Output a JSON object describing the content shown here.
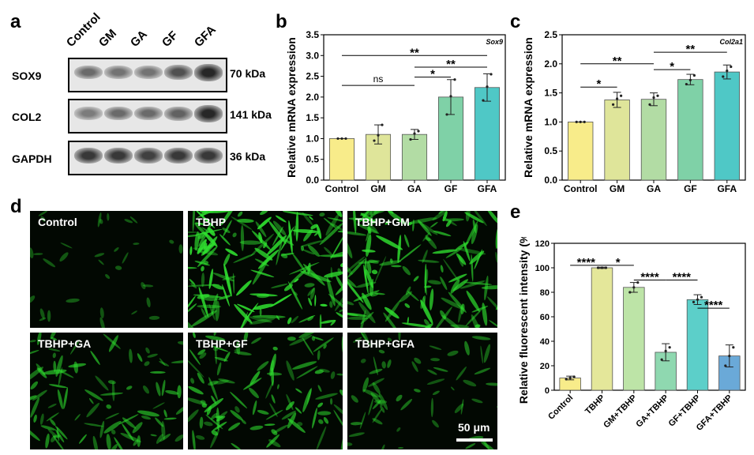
{
  "panel_labels": {
    "a": "a",
    "b": "b",
    "c": "c",
    "d": "d",
    "e": "e"
  },
  "western_blot": {
    "columns": [
      "Control",
      "GM",
      "GA",
      "GF",
      "GFA"
    ],
    "rows": [
      {
        "name": "SOX9",
        "kda": "70 kDa",
        "intensities": [
          0.55,
          0.5,
          0.5,
          0.7,
          0.95
        ]
      },
      {
        "name": "COL2",
        "kda": "141 kDa",
        "intensities": [
          0.45,
          0.55,
          0.55,
          0.6,
          0.95
        ]
      },
      {
        "name": "GAPDH",
        "kda": "36 kDa",
        "intensities": [
          0.85,
          0.85,
          0.8,
          0.85,
          0.85
        ]
      }
    ]
  },
  "chart_data": [
    {
      "id": "b",
      "type": "bar",
      "gene": "Sox9",
      "ylabel": "Relative mRNA expression",
      "categories": [
        "Control",
        "GM",
        "GA",
        "GF",
        "GFA"
      ],
      "values": [
        1.0,
        1.1,
        1.1,
        2.0,
        2.23
      ],
      "errors": [
        0.0,
        0.23,
        0.12,
        0.42,
        0.33
      ],
      "points": [
        [
          1.0,
          1.0,
          1.0
        ],
        [
          0.95,
          1.08,
          1.33
        ],
        [
          0.98,
          1.12,
          1.18
        ],
        [
          1.58,
          2.02,
          2.42
        ],
        [
          1.92,
          2.25,
          2.55
        ]
      ],
      "colors": [
        "#f8ec8a",
        "#dfe59a",
        "#b2dca4",
        "#7fd1a7",
        "#4fc8c6"
      ],
      "ylim": [
        0,
        3.5
      ],
      "yticks": [
        "0.0",
        "0.5",
        "1.0",
        "1.5",
        "2.0",
        "2.5",
        "3.0",
        "3.5"
      ],
      "significance": [
        {
          "from": 0,
          "to": 4,
          "label": "**",
          "level": 3.0
        },
        {
          "from": 2,
          "to": 4,
          "label": "**",
          "level": 2.72
        },
        {
          "from": 2,
          "to": 3,
          "label": "*",
          "level": 2.48
        },
        {
          "from": 0,
          "to": 2,
          "label": "ns",
          "level": 2.28
        }
      ]
    },
    {
      "id": "c",
      "type": "bar",
      "gene": "Col2a1",
      "ylabel": "Relative mRNA expression",
      "categories": [
        "Control",
        "GM",
        "GA",
        "GF",
        "GFA"
      ],
      "values": [
        1.0,
        1.38,
        1.39,
        1.73,
        1.86
      ],
      "errors": [
        0.0,
        0.13,
        0.11,
        0.09,
        0.12
      ],
      "points": [
        [
          1.0,
          1.0,
          1.0
        ],
        [
          1.3,
          1.4,
          1.45
        ],
        [
          1.3,
          1.42,
          1.45
        ],
        [
          1.65,
          1.72,
          1.8
        ],
        [
          1.78,
          1.88,
          1.95
        ]
      ],
      "colors": [
        "#f8ec8a",
        "#dfe59a",
        "#b2dca4",
        "#7fd1a7",
        "#4fc8c6"
      ],
      "ylim": [
        0,
        2.5
      ],
      "yticks": [
        "0.0",
        "0.5",
        "1.0",
        "1.5",
        "2.0",
        "2.5"
      ],
      "significance": [
        {
          "from": 2,
          "to": 4,
          "label": "**",
          "level": 2.2
        },
        {
          "from": 0,
          "to": 2,
          "label": "**",
          "level": 2.0
        },
        {
          "from": 2,
          "to": 3,
          "label": "*",
          "level": 1.9
        },
        {
          "from": 0,
          "to": 1,
          "label": "*",
          "level": 1.6
        }
      ]
    },
    {
      "id": "e",
      "type": "bar",
      "ylabel": "Relative fluorescent intensity (%)",
      "categories": [
        "Control",
        "TBHP",
        "GM+TBHP",
        "GA+TBHP",
        "GF+TBHP",
        "GFA+TBHP"
      ],
      "values": [
        10,
        100,
        84,
        31,
        74,
        28
      ],
      "errors": [
        1.5,
        0.5,
        4,
        7,
        4,
        9
      ],
      "points": [
        [
          9,
          10,
          11
        ],
        [
          100,
          100,
          100
        ],
        [
          80,
          84,
          88
        ],
        [
          25,
          32,
          35
        ],
        [
          72,
          74,
          76
        ],
        [
          20,
          28,
          35
        ]
      ],
      "colors": [
        "#f8ec8a",
        "#e4e79a",
        "#bde4a7",
        "#8fd8b0",
        "#5ccfc9",
        "#6aa9d8"
      ],
      "ylim": [
        0,
        120
      ],
      "yticks": [
        "0",
        "20",
        "40",
        "60",
        "80",
        "100",
        "120"
      ],
      "significance": [
        {
          "from": 0,
          "to": 1,
          "label": "****",
          "level": 102
        },
        {
          "from": 1,
          "to": 2,
          "label": "*",
          "level": 102
        },
        {
          "from": 2,
          "to": 3,
          "label": "****",
          "level": 90
        },
        {
          "from": 3,
          "to": 4,
          "label": "****",
          "level": 90
        },
        {
          "from": 4,
          "to": 5,
          "label": "****",
          "level": 67
        }
      ]
    }
  ],
  "fluorescence": {
    "panels": [
      "Control",
      "TBHP",
      "TBHP+GM",
      "TBHP+GA",
      "TBHP+GF",
      "TBHP+GFA"
    ],
    "density": [
      0.05,
      0.9,
      0.75,
      0.45,
      0.55,
      0.25
    ],
    "scale_bar": "50 μm",
    "cell_color": "#2fe02f"
  }
}
